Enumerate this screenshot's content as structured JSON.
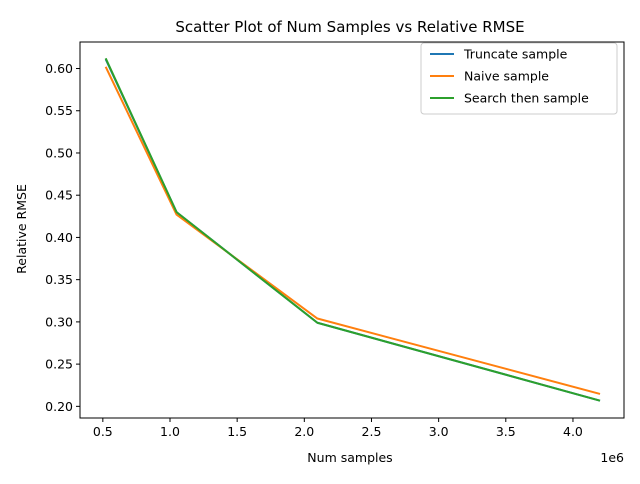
{
  "chart_data": {
    "type": "line",
    "title": "Scatter Plot of Num Samples vs Relative RMSE",
    "xlabel": "Num samples",
    "ylabel": "Relative RMSE",
    "x_offset_label": "1e6",
    "x_scale": 1000000,
    "xlim": [
      0.33,
      4.38
    ],
    "ylim": [
      0.1862,
      0.6314
    ],
    "x_ticks": [
      {
        "value": 0.5,
        "label": "0.5"
      },
      {
        "value": 1.0,
        "label": "1.0"
      },
      {
        "value": 1.5,
        "label": "1.5"
      },
      {
        "value": 2.0,
        "label": "2.0"
      },
      {
        "value": 2.5,
        "label": "2.5"
      },
      {
        "value": 3.0,
        "label": "3.0"
      },
      {
        "value": 3.5,
        "label": "3.5"
      },
      {
        "value": 4.0,
        "label": "4.0"
      }
    ],
    "y_ticks": [
      {
        "value": 0.2,
        "label": "0.20"
      },
      {
        "value": 0.25,
        "label": "0.25"
      },
      {
        "value": 0.3,
        "label": "0.30"
      },
      {
        "value": 0.35,
        "label": "0.35"
      },
      {
        "value": 0.4,
        "label": "0.40"
      },
      {
        "value": 0.45,
        "label": "0.45"
      },
      {
        "value": 0.5,
        "label": "0.50"
      },
      {
        "value": 0.55,
        "label": "0.55"
      },
      {
        "value": 0.6,
        "label": "0.60"
      }
    ],
    "x": [
      524288,
      1048576,
      2097152,
      4194304
    ],
    "series": [
      {
        "name": "Truncate sample",
        "color": "#1f77b4",
        "values": [
          0.61,
          0.43,
          0.299,
          0.207
        ]
      },
      {
        "name": "Naive sample",
        "color": "#ff7f0e",
        "values": [
          0.601,
          0.427,
          0.304,
          0.215
        ]
      },
      {
        "name": "Search then sample",
        "color": "#2ca02c",
        "values": [
          0.611,
          0.43,
          0.299,
          0.207
        ]
      }
    ],
    "grid": false,
    "legend_position": "upper right"
  }
}
